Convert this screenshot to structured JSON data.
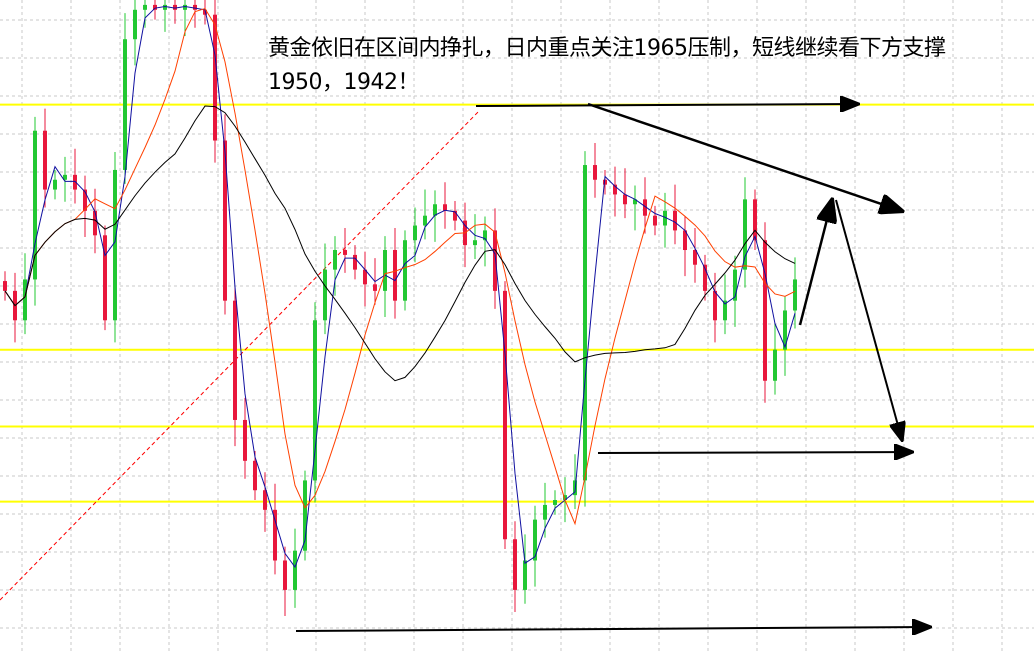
{
  "chart_data": {
    "type": "candlestick",
    "title": "",
    "xlabel": "",
    "ylabel": "",
    "ylim": [
      1931.5,
      1971.4
    ],
    "grid": true,
    "closes": [
      1953.6,
      1951.8,
      1954.3,
      1963.4,
      1959.8,
      1960.4,
      1960.7,
      1959.8,
      1958.5,
      1957.0,
      1951.8,
      1961.0,
      1969.0,
      1970.8,
      1971.1,
      1970.8,
      1971.1,
      1970.8,
      1971.1,
      1970.8,
      1970.5,
      1962.8,
      1953.0,
      1945.7,
      1943.2,
      1941.4,
      1940.2,
      1937.1,
      1935.3,
      1937.7,
      1942.0,
      1951.8,
      1954.9,
      1956.1,
      1955.8,
      1954.9,
      1954.0,
      1953.6,
      1956.1,
      1953.0,
      1956.7,
      1957.6,
      1958.2,
      1958.9,
      1958.5,
      1957.9,
      1956.4,
      1956.7,
      1957.3,
      1953.6,
      1938.4,
      1935.3,
      1937.1,
      1939.6,
      1940.5,
      1940.8,
      1941.1,
      1942.0,
      1961.3,
      1960.4,
      1960.1,
      1959.5,
      1958.9,
      1959.2,
      1958.2,
      1957.6,
      1958.5,
      1957.3,
      1956.1,
      1955.2,
      1953.6,
      1951.8,
      1953.0,
      1954.9,
      1959.2,
      1956.7,
      1948.1,
      1950.0,
      1952.4,
      1954.3
    ],
    "horizontal_levels": [
      1965,
      1950,
      1945.3,
      1940.7
    ],
    "colors": {
      "up": "#22c832",
      "down": "#e8173c",
      "level": "#ffff00",
      "ma_fast": "#1010a0",
      "ma_mid": "#ff4000",
      "ma_slow": "#000000",
      "grid": "#c8c8c8",
      "trendline": "#ff0000"
    },
    "annotation": "黄金依旧在区间内挣扎，日内重点关注1965压制，短线继续看下方支撑1950，1942！"
  }
}
